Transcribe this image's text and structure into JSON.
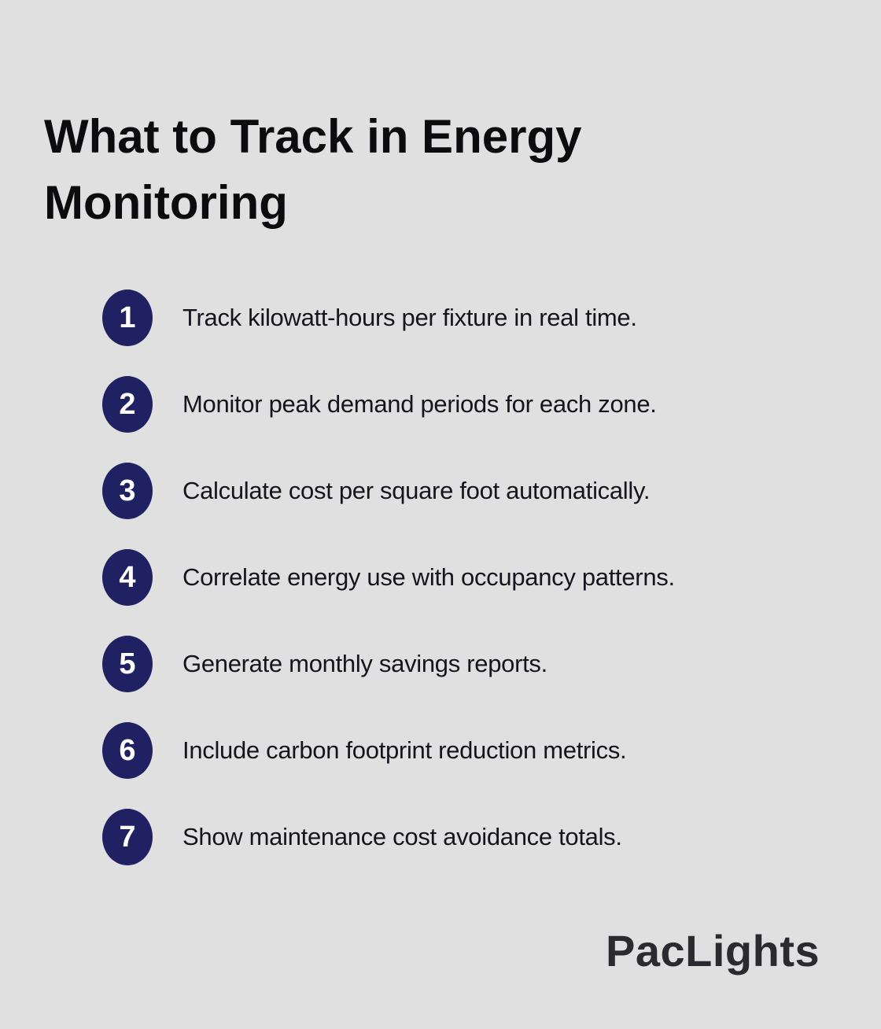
{
  "title": "What to Track in Energy Monitoring",
  "list": {
    "items": [
      {
        "number": "1",
        "text": "Track kilowatt-hours per fixture in real time."
      },
      {
        "number": "2",
        "text": "Monitor peak demand periods for each zone."
      },
      {
        "number": "3",
        "text": "Calculate cost per square foot automatically."
      },
      {
        "number": "4",
        "text": "Correlate energy use with occupancy patterns."
      },
      {
        "number": "5",
        "text": "Generate monthly savings reports."
      },
      {
        "number": "6",
        "text": "Include carbon footprint reduction metrics."
      },
      {
        "number": "7",
        "text": "Show maintenance cost avoidance totals."
      }
    ]
  },
  "branding": {
    "logo_text": "PacLights"
  },
  "colors": {
    "background": "#e0e0e0",
    "badge": "#1f2163",
    "badge_text": "#ffffff",
    "title_text": "#0c0c0e",
    "body_text": "#15151d",
    "logo_text": "#2b2a2e"
  }
}
